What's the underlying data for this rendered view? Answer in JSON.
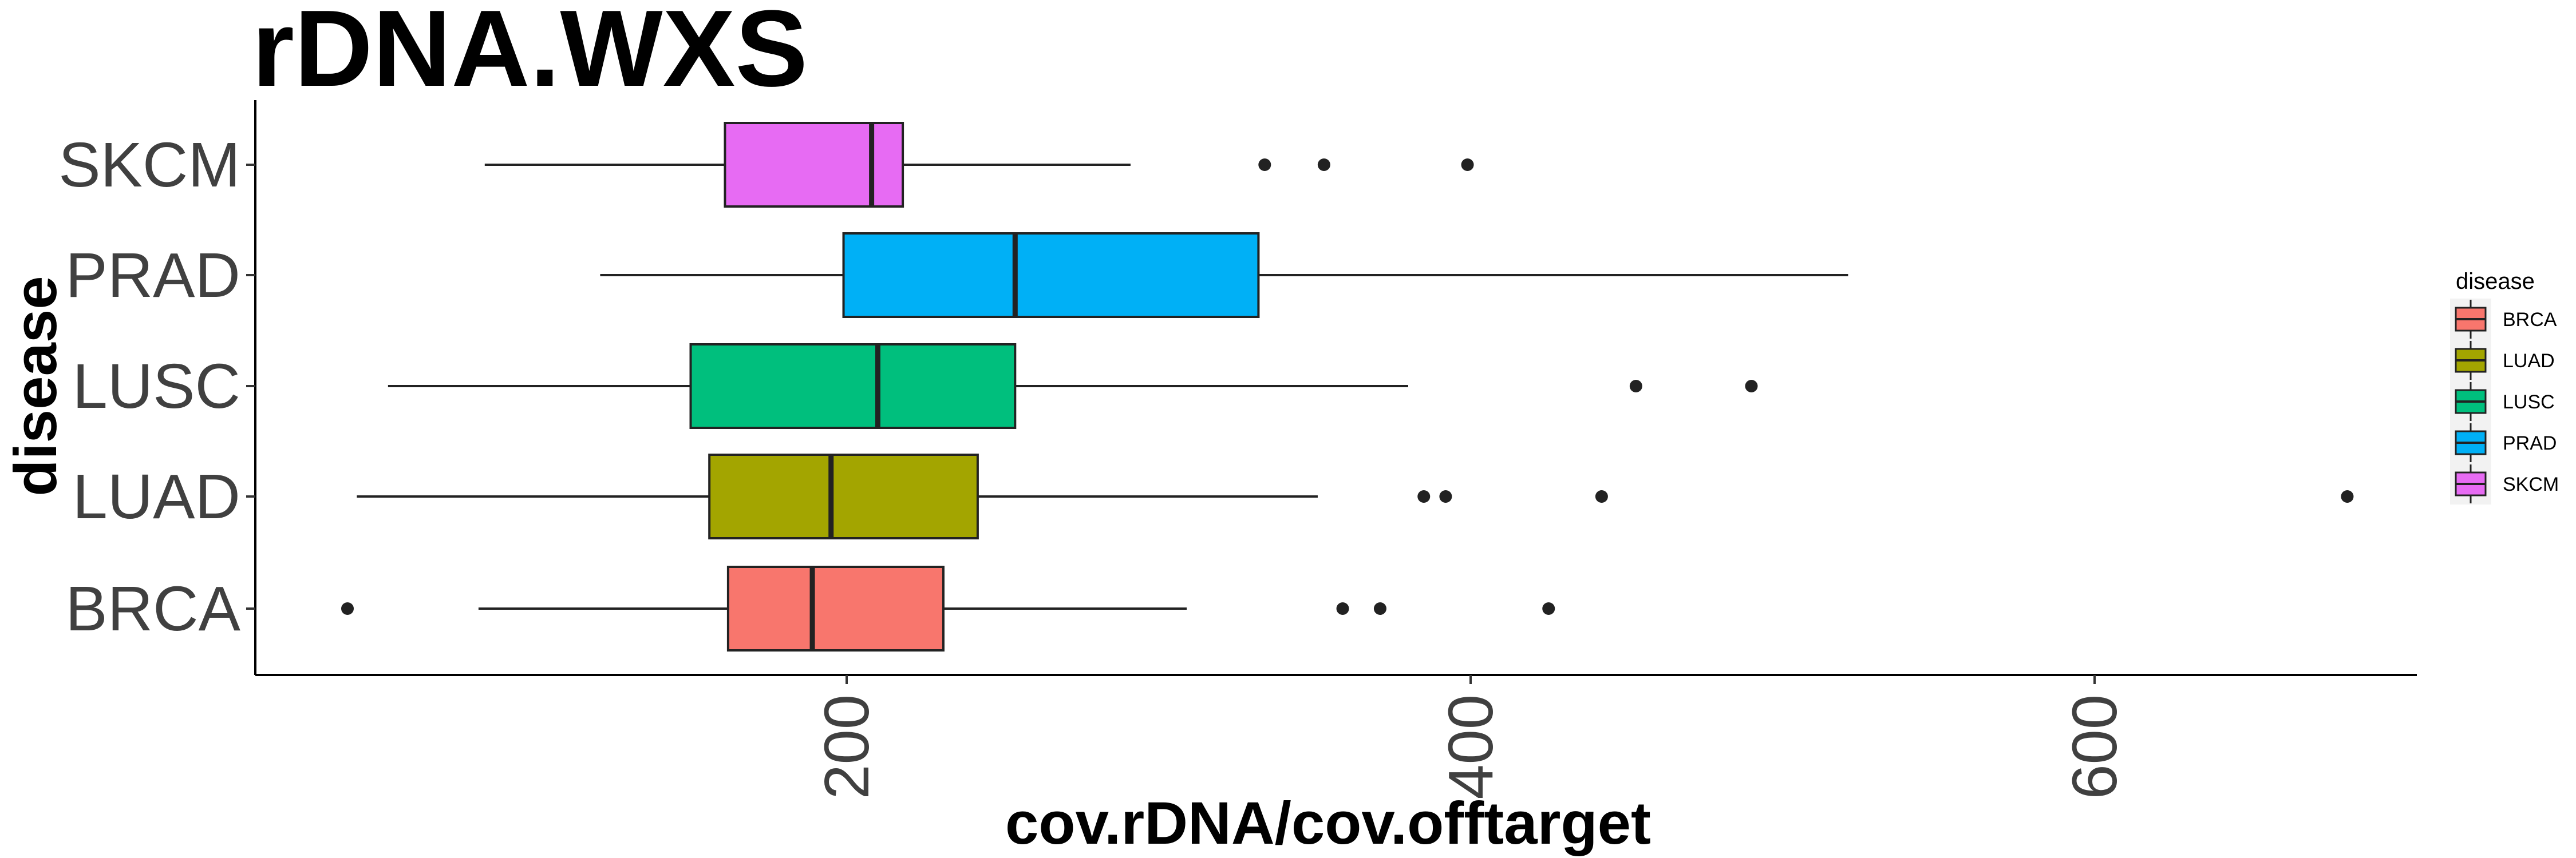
{
  "chart_data": {
    "type": "boxplot",
    "title": "rDNA.WXS",
    "xlabel": "cov.rDNA/cov.offtarget",
    "ylabel": "disease",
    "xlim": [
      0,
      700
    ],
    "xticks": [
      200,
      400,
      600
    ],
    "grid": false,
    "legend": {
      "title": "disease",
      "position": "right"
    },
    "categories": [
      "BRCA",
      "LUAD",
      "LUSC",
      "PRAD",
      "SKCM"
    ],
    "series": [
      {
        "name": "BRCA",
        "color": "#F8766D",
        "whisker_low": 82,
        "q1": 162,
        "median": 189,
        "q3": 231,
        "whisker_high": 309,
        "outliers": [
          40,
          359,
          371,
          425
        ]
      },
      {
        "name": "LUAD",
        "color": "#A3A500",
        "whisker_low": 43,
        "q1": 156,
        "median": 195,
        "q3": 242,
        "whisker_high": 351,
        "outliers": [
          385,
          392,
          442,
          681
        ]
      },
      {
        "name": "LUSC",
        "color": "#00BF7D",
        "whisker_low": 53,
        "q1": 150,
        "median": 210,
        "q3": 254,
        "whisker_high": 380,
        "outliers": [
          453,
          490
        ]
      },
      {
        "name": "PRAD",
        "color": "#00B0F6",
        "whisker_low": 121,
        "q1": 199,
        "median": 254,
        "q3": 332,
        "whisker_high": 521,
        "outliers": []
      },
      {
        "name": "SKCM",
        "color": "#E76BF3",
        "whisker_low": 84,
        "q1": 161,
        "median": 208,
        "q3": 218,
        "whisker_high": 291,
        "outliers": [
          334,
          353,
          399
        ]
      }
    ]
  }
}
